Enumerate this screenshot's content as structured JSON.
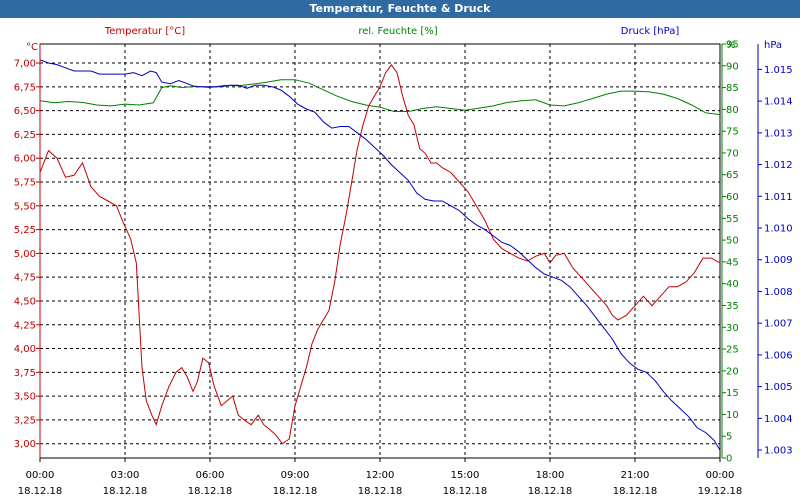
{
  "window": {
    "title": "Temperatur, Feuchte & Druck"
  },
  "chart_data": {
    "type": "line",
    "title": "Temperatur, Feuchte & Druck",
    "x_ticks": [
      {
        "time": "00:00",
        "date": "18.12.18"
      },
      {
        "time": "03:00",
        "date": "18.12.18"
      },
      {
        "time": "06:00",
        "date": "18.12.18"
      },
      {
        "time": "09:00",
        "date": "18.12.18"
      },
      {
        "time": "12:00",
        "date": "18.12.18"
      },
      {
        "time": "15:00",
        "date": "18.12.18"
      },
      {
        "time": "18:00",
        "date": "18.12.18"
      },
      {
        "time": "21:00",
        "date": "18.12.18"
      },
      {
        "time": "00:00",
        "date": "19.12.18"
      }
    ],
    "grid": true,
    "axes": {
      "left": {
        "unit": "°C",
        "min": 2.85,
        "max": 7.2,
        "ticks": [
          "3.00",
          "3.25",
          "3.50",
          "3.75",
          "4.00",
          "4.25",
          "4.50",
          "4.75",
          "5.00",
          "5.25",
          "5.50",
          "5.75",
          "6.00",
          "6.25",
          "6.50",
          "6.75",
          "7.00"
        ],
        "color": "#c00000"
      },
      "right1": {
        "unit": "%",
        "min": 0,
        "max": 95,
        "ticks": [
          "0",
          "5",
          "10",
          "15",
          "20",
          "25",
          "30",
          "35",
          "40",
          "45",
          "50",
          "55",
          "60",
          "65",
          "70",
          "75",
          "80",
          "85",
          "90",
          "95",
          "%"
        ],
        "color": "#008000"
      },
      "right2": {
        "unit": "hPa",
        "min": 1002.75,
        "max": 1015.8,
        "ticks": [
          "1.003",
          "1.004",
          "1.005",
          "1.006",
          "1.007",
          "1.008",
          "1.009",
          "1.010",
          "1.011",
          "1.012",
          "1.013",
          "1.014",
          "1.015"
        ],
        "color": "#0000c0"
      }
    },
    "left_tick_labels": [
      "3,00",
      "3,25",
      "3,50",
      "3,75",
      "4,00",
      "4,25",
      "4,50",
      "4,75",
      "5,00",
      "5,25",
      "5,50",
      "5,75",
      "6,00",
      "6,25",
      "6,50",
      "6,75",
      "7,00"
    ],
    "hum_tick_labels": [
      "0",
      "5",
      "10",
      "15",
      "20",
      "25",
      "30",
      "35",
      "40",
      "45",
      "50",
      "55",
      "60",
      "65",
      "70",
      "75",
      "80",
      "85",
      "90",
      "95",
      "%"
    ],
    "press_tick_labels": [
      "1.003",
      "1.004",
      "1.005",
      "1.006",
      "1.007",
      "1.008",
      "1.009",
      "1.010",
      "1.011",
      "1.012",
      "1.013",
      "1.014",
      "1.015"
    ],
    "unit_labels": {
      "left": "°C",
      "right2": "hPa"
    },
    "series": [
      {
        "name": "Temperatur [°C]",
        "color": "#c00000",
        "axis": "left",
        "points": [
          [
            0,
            5.85
          ],
          [
            0.3,
            6.08
          ],
          [
            0.6,
            6.0
          ],
          [
            0.9,
            5.8
          ],
          [
            1.2,
            5.82
          ],
          [
            1.5,
            5.95
          ],
          [
            1.8,
            5.7
          ],
          [
            2.1,
            5.6
          ],
          [
            2.4,
            5.55
          ],
          [
            2.7,
            5.5
          ],
          [
            2.9,
            5.35
          ],
          [
            3.2,
            5.15
          ],
          [
            3.4,
            4.9
          ],
          [
            3.6,
            3.8
          ],
          [
            3.75,
            3.45
          ],
          [
            3.95,
            3.3
          ],
          [
            4.1,
            3.2
          ],
          [
            4.3,
            3.4
          ],
          [
            4.55,
            3.6
          ],
          [
            4.8,
            3.75
          ],
          [
            5.0,
            3.8
          ],
          [
            5.2,
            3.7
          ],
          [
            5.4,
            3.55
          ],
          [
            5.55,
            3.65
          ],
          [
            5.75,
            3.9
          ],
          [
            5.95,
            3.85
          ],
          [
            6.15,
            3.6
          ],
          [
            6.4,
            3.4
          ],
          [
            6.6,
            3.45
          ],
          [
            6.8,
            3.5
          ],
          [
            7.0,
            3.3
          ],
          [
            7.2,
            3.25
          ],
          [
            7.45,
            3.2
          ],
          [
            7.7,
            3.3
          ],
          [
            7.9,
            3.2
          ],
          [
            8.1,
            3.15
          ],
          [
            8.3,
            3.1
          ],
          [
            8.55,
            3.0
          ],
          [
            8.8,
            3.05
          ],
          [
            9.0,
            3.4
          ],
          [
            9.2,
            3.6
          ],
          [
            9.4,
            3.8
          ],
          [
            9.6,
            4.05
          ],
          [
            9.8,
            4.2
          ],
          [
            10.0,
            4.3
          ],
          [
            10.2,
            4.4
          ],
          [
            10.4,
            4.7
          ],
          [
            10.6,
            5.1
          ],
          [
            10.8,
            5.4
          ],
          [
            11.0,
            5.75
          ],
          [
            11.2,
            6.1
          ],
          [
            11.4,
            6.35
          ],
          [
            11.6,
            6.55
          ],
          [
            11.8,
            6.65
          ],
          [
            12.0,
            6.75
          ],
          [
            12.2,
            6.9
          ],
          [
            12.4,
            6.98
          ],
          [
            12.6,
            6.9
          ],
          [
            12.8,
            6.65
          ],
          [
            13.0,
            6.45
          ],
          [
            13.2,
            6.35
          ],
          [
            13.4,
            6.1
          ],
          [
            13.6,
            6.05
          ],
          [
            13.8,
            5.95
          ],
          [
            14.0,
            5.95
          ],
          [
            14.2,
            5.9
          ],
          [
            14.5,
            5.85
          ],
          [
            14.8,
            5.75
          ],
          [
            15.1,
            5.65
          ],
          [
            15.4,
            5.5
          ],
          [
            15.7,
            5.35
          ],
          [
            16.0,
            5.15
          ],
          [
            16.3,
            5.05
          ],
          [
            16.6,
            5.0
          ],
          [
            16.9,
            4.95
          ],
          [
            17.2,
            4.92
          ],
          [
            17.5,
            4.97
          ],
          [
            17.8,
            5.0
          ],
          [
            18.0,
            4.9
          ],
          [
            18.2,
            4.98
          ],
          [
            18.5,
            5.0
          ],
          [
            18.8,
            4.85
          ],
          [
            19.1,
            4.75
          ],
          [
            19.4,
            4.65
          ],
          [
            19.7,
            4.55
          ],
          [
            20.0,
            4.45
          ],
          [
            20.2,
            4.35
          ],
          [
            20.4,
            4.3
          ],
          [
            20.7,
            4.35
          ],
          [
            21.0,
            4.45
          ],
          [
            21.3,
            4.55
          ],
          [
            21.6,
            4.45
          ],
          [
            21.9,
            4.55
          ],
          [
            22.2,
            4.65
          ],
          [
            22.5,
            4.65
          ],
          [
            22.8,
            4.7
          ],
          [
            23.1,
            4.8
          ],
          [
            23.4,
            4.95
          ],
          [
            23.7,
            4.95
          ],
          [
            24.0,
            4.9
          ]
        ]
      },
      {
        "name": "rel. Feuchte [%]",
        "color": "#008000",
        "axis": "right1",
        "points": [
          [
            0,
            82.0
          ],
          [
            0.5,
            81.5
          ],
          [
            1.0,
            81.8
          ],
          [
            1.5,
            81.6
          ],
          [
            2.0,
            81.0
          ],
          [
            2.5,
            80.8
          ],
          [
            3.0,
            81.2
          ],
          [
            3.5,
            81.0
          ],
          [
            4.0,
            81.5
          ],
          [
            4.3,
            85.0
          ],
          [
            4.6,
            85.4
          ],
          [
            5.0,
            85.0
          ],
          [
            5.5,
            85.3
          ],
          [
            6.0,
            85.0
          ],
          [
            6.5,
            85.5
          ],
          [
            7.0,
            85.4
          ],
          [
            7.5,
            85.8
          ],
          [
            8.0,
            86.2
          ],
          [
            8.5,
            86.8
          ],
          [
            9.0,
            86.8
          ],
          [
            9.5,
            86.0
          ],
          [
            10.0,
            84.5
          ],
          [
            10.5,
            83.0
          ],
          [
            11.0,
            81.8
          ],
          [
            11.5,
            81.0
          ],
          [
            12.0,
            80.5
          ],
          [
            12.5,
            79.5
          ],
          [
            13.0,
            79.5
          ],
          [
            13.5,
            80.2
          ],
          [
            14.0,
            80.6
          ],
          [
            14.5,
            80.2
          ],
          [
            15.0,
            79.8
          ],
          [
            15.5,
            80.3
          ],
          [
            16.0,
            80.8
          ],
          [
            16.5,
            81.6
          ],
          [
            17.0,
            82.0
          ],
          [
            17.5,
            82.2
          ],
          [
            18.0,
            81.0
          ],
          [
            18.5,
            80.8
          ],
          [
            19.0,
            81.5
          ],
          [
            19.5,
            82.5
          ],
          [
            20.0,
            83.5
          ],
          [
            20.5,
            84.2
          ],
          [
            21.0,
            84.2
          ],
          [
            21.5,
            84.0
          ],
          [
            22.0,
            83.5
          ],
          [
            22.5,
            82.5
          ],
          [
            23.0,
            81.0
          ],
          [
            23.5,
            79.2
          ],
          [
            24.0,
            78.8
          ]
        ]
      },
      {
        "name": "Druck [hPa]",
        "color": "#0000c0",
        "axis": "right2",
        "points": [
          [
            0,
            1015.3
          ],
          [
            0.3,
            1015.2
          ],
          [
            0.6,
            1015.15
          ],
          [
            0.9,
            1015.05
          ],
          [
            1.2,
            1014.95
          ],
          [
            1.5,
            1014.95
          ],
          [
            1.8,
            1014.95
          ],
          [
            2.1,
            1014.85
          ],
          [
            2.4,
            1014.85
          ],
          [
            2.7,
            1014.85
          ],
          [
            3.0,
            1014.85
          ],
          [
            3.3,
            1014.9
          ],
          [
            3.6,
            1014.8
          ],
          [
            3.9,
            1014.95
          ],
          [
            4.1,
            1014.9
          ],
          [
            4.3,
            1014.6
          ],
          [
            4.6,
            1014.55
          ],
          [
            4.9,
            1014.65
          ],
          [
            5.2,
            1014.55
          ],
          [
            5.5,
            1014.45
          ],
          [
            5.8,
            1014.45
          ],
          [
            6.1,
            1014.45
          ],
          [
            6.4,
            1014.45
          ],
          [
            6.7,
            1014.5
          ],
          [
            7.0,
            1014.5
          ],
          [
            7.3,
            1014.4
          ],
          [
            7.6,
            1014.5
          ],
          [
            7.9,
            1014.5
          ],
          [
            8.2,
            1014.45
          ],
          [
            8.5,
            1014.35
          ],
          [
            8.8,
            1014.15
          ],
          [
            9.1,
            1013.9
          ],
          [
            9.4,
            1013.75
          ],
          [
            9.7,
            1013.65
          ],
          [
            10.0,
            1013.35
          ],
          [
            10.3,
            1013.15
          ],
          [
            10.6,
            1013.2
          ],
          [
            10.9,
            1013.2
          ],
          [
            11.2,
            1013.0
          ],
          [
            11.5,
            1012.8
          ],
          [
            11.8,
            1012.55
          ],
          [
            12.1,
            1012.3
          ],
          [
            12.4,
            1012.0
          ],
          [
            12.7,
            1011.75
          ],
          [
            13.0,
            1011.5
          ],
          [
            13.3,
            1011.1
          ],
          [
            13.6,
            1010.9
          ],
          [
            13.9,
            1010.85
          ],
          [
            14.2,
            1010.85
          ],
          [
            14.5,
            1010.7
          ],
          [
            14.8,
            1010.55
          ],
          [
            15.1,
            1010.3
          ],
          [
            15.4,
            1010.1
          ],
          [
            15.7,
            1009.95
          ],
          [
            16.0,
            1009.75
          ],
          [
            16.3,
            1009.55
          ],
          [
            16.6,
            1009.45
          ],
          [
            16.9,
            1009.25
          ],
          [
            17.2,
            1009.0
          ],
          [
            17.5,
            1008.75
          ],
          [
            17.8,
            1008.55
          ],
          [
            18.1,
            1008.45
          ],
          [
            18.4,
            1008.35
          ],
          [
            18.7,
            1008.15
          ],
          [
            19.0,
            1007.85
          ],
          [
            19.3,
            1007.55
          ],
          [
            19.6,
            1007.2
          ],
          [
            19.9,
            1006.85
          ],
          [
            20.2,
            1006.5
          ],
          [
            20.5,
            1006.05
          ],
          [
            20.8,
            1005.75
          ],
          [
            21.1,
            1005.55
          ],
          [
            21.4,
            1005.45
          ],
          [
            21.7,
            1005.2
          ],
          [
            22.0,
            1004.85
          ],
          [
            22.3,
            1004.55
          ],
          [
            22.6,
            1004.3
          ],
          [
            22.9,
            1004.05
          ],
          [
            23.2,
            1003.7
          ],
          [
            23.5,
            1003.55
          ],
          [
            23.8,
            1003.3
          ],
          [
            24.0,
            1003.0
          ]
        ]
      }
    ]
  }
}
